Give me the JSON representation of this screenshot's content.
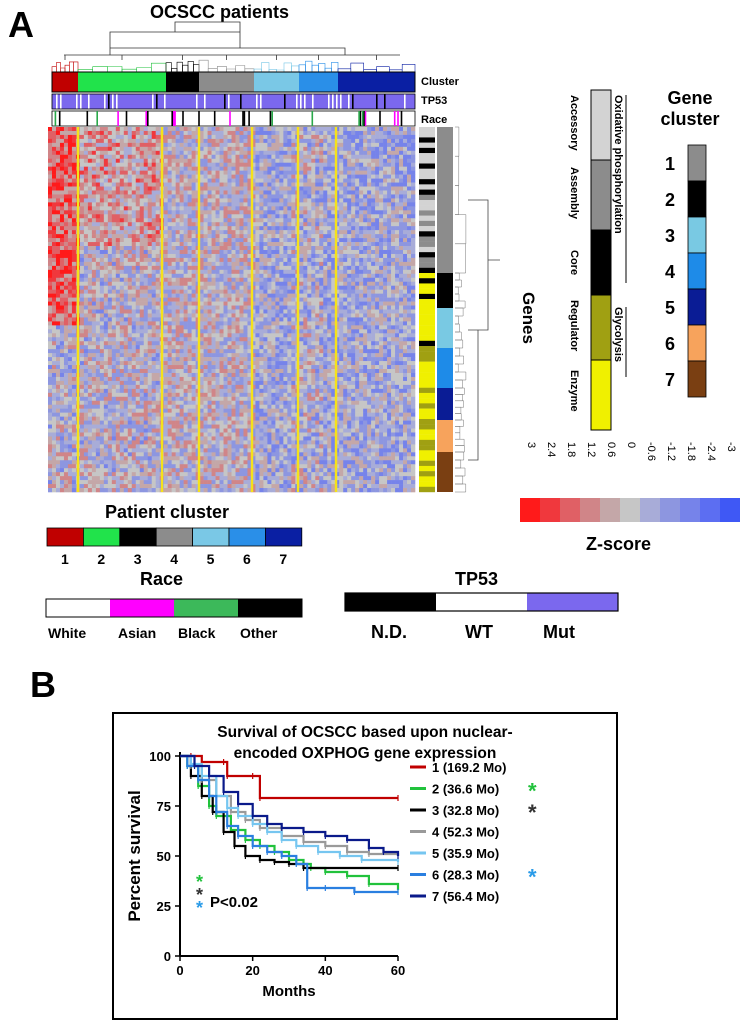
{
  "panel_a": {
    "letter": "A",
    "title": "OCSCC patients",
    "row_labels": {
      "cluster": "Cluster",
      "tp53": "TP53",
      "race": "Race"
    },
    "genes_label": "Genes",
    "pathways": {
      "oxphos": "Oxidative phosphorylation",
      "glycolysis": "Glycolysis",
      "subgroups": [
        "Accessory",
        "Assembly",
        "Core",
        "Regulator",
        "Enzyme"
      ]
    },
    "gene_cluster": {
      "title_line1": "Gene",
      "title_line2": "cluster",
      "numbers": [
        "1",
        "2",
        "3",
        "4",
        "5",
        "6",
        "7"
      ],
      "colors": [
        "#8c8c8c",
        "#000000",
        "#79c9e3",
        "#1e8be8",
        "#0a1c95",
        "#f7a35c",
        "#7a3f12"
      ]
    },
    "zscore": {
      "title": "Z-score",
      "ticks": [
        "3",
        "2.4",
        "1.8",
        "1.2",
        "0.6",
        "0",
        "-0.6",
        "-1.2",
        "-1.8",
        "-2.4",
        "-3"
      ],
      "colors": [
        "#ff1a1a",
        "#f0383d",
        "#e06065",
        "#d08588",
        "#c4a7a8",
        "#c6c6c6",
        "#a8acd8",
        "#8d96e0",
        "#7683ea",
        "#5c6ef2",
        "#3f58f5"
      ]
    },
    "patient_cluster": {
      "title": "Patient cluster",
      "numbers": [
        "1",
        "2",
        "3",
        "4",
        "5",
        "6",
        "7"
      ],
      "colors": [
        "#c00000",
        "#21e34b",
        "#000000",
        "#8c8c8c",
        "#7ac8e6",
        "#2a8fe8",
        "#0a1fa3"
      ]
    },
    "race": {
      "title": "Race",
      "labels": [
        "White",
        "Asian",
        "Black",
        "Other"
      ],
      "colors": [
        "#ffffff",
        "#ff00ff",
        "#3cb95a",
        "#000000"
      ]
    },
    "tp53": {
      "title": "TP53",
      "labels": [
        "N.D.",
        "WT",
        "Mut"
      ],
      "colors": [
        "#000000",
        "#ffffff",
        "#7b68ee"
      ]
    }
  },
  "panel_b": {
    "letter": "B",
    "title_line1": "Survival of OCSCC based upon nuclear-",
    "title_line2": "encoded OXPHOG gene expression",
    "pvalue": "P<0.02",
    "star": "*"
  },
  "chart_data": {
    "type": "line",
    "subtype": "kaplan-meier",
    "xlabel": "Months",
    "ylabel": "Percent survival",
    "xlim": [
      0,
      60
    ],
    "ylim": [
      0,
      100
    ],
    "xticks": [
      0,
      20,
      40,
      60
    ],
    "yticks": [
      0,
      25,
      50,
      75,
      100
    ],
    "series": [
      {
        "name": "1 (169.2 Mo)",
        "color": "#c00000",
        "star": false,
        "points": [
          [
            0,
            100
          ],
          [
            3,
            100
          ],
          [
            6,
            97
          ],
          [
            12,
            97
          ],
          [
            13,
            90
          ],
          [
            20,
            90
          ],
          [
            22,
            79
          ],
          [
            60,
            79
          ]
        ]
      },
      {
        "name": "2 (36.6 Mo)",
        "color": "#21c23c",
        "star": true,
        "star_color": "#21c23c",
        "points": [
          [
            0,
            100
          ],
          [
            2,
            95
          ],
          [
            5,
            85
          ],
          [
            8,
            75
          ],
          [
            10,
            70
          ],
          [
            14,
            63
          ],
          [
            18,
            58
          ],
          [
            22,
            55
          ],
          [
            26,
            52
          ],
          [
            30,
            48
          ],
          [
            34,
            46
          ],
          [
            36,
            44
          ],
          [
            40,
            42
          ],
          [
            46,
            40
          ],
          [
            52,
            36
          ],
          [
            60,
            33
          ]
        ]
      },
      {
        "name": "3 (32.8 Mo)",
        "color": "#000000",
        "star": true,
        "star_color": "#333333",
        "points": [
          [
            0,
            100
          ],
          [
            3,
            90
          ],
          [
            6,
            80
          ],
          [
            9,
            72
          ],
          [
            12,
            62
          ],
          [
            15,
            55
          ],
          [
            18,
            50
          ],
          [
            22,
            48
          ],
          [
            26,
            47
          ],
          [
            30,
            46
          ],
          [
            34,
            44
          ],
          [
            60,
            44
          ]
        ]
      },
      {
        "name": "4 (52.3 Mo)",
        "color": "#9a9a9a",
        "star": false,
        "points": [
          [
            0,
            100
          ],
          [
            3,
            95
          ],
          [
            6,
            88
          ],
          [
            10,
            80
          ],
          [
            14,
            72
          ],
          [
            18,
            68
          ],
          [
            22,
            64
          ],
          [
            28,
            60
          ],
          [
            34,
            57
          ],
          [
            40,
            55
          ],
          [
            46,
            52
          ],
          [
            52,
            51
          ],
          [
            60,
            50
          ]
        ]
      },
      {
        "name": "5 (35.9 Mo)",
        "color": "#76c6f0",
        "star": false,
        "points": [
          [
            0,
            100
          ],
          [
            3,
            96
          ],
          [
            6,
            90
          ],
          [
            10,
            80
          ],
          [
            13,
            74
          ],
          [
            16,
            70
          ],
          [
            20,
            66
          ],
          [
            24,
            62
          ],
          [
            28,
            58
          ],
          [
            32,
            55
          ],
          [
            38,
            52
          ],
          [
            44,
            50
          ],
          [
            50,
            48
          ],
          [
            60,
            47
          ]
        ]
      },
      {
        "name": "6 (28.3 Mo)",
        "color": "#2a7fe0",
        "star": true,
        "star_color": "#2a9be8",
        "points": [
          [
            0,
            100
          ],
          [
            2,
            95
          ],
          [
            5,
            88
          ],
          [
            8,
            80
          ],
          [
            10,
            72
          ],
          [
            13,
            65
          ],
          [
            16,
            60
          ],
          [
            20,
            55
          ],
          [
            24,
            52
          ],
          [
            28,
            50
          ],
          [
            32,
            46
          ],
          [
            35,
            34
          ],
          [
            40,
            34
          ],
          [
            48,
            32
          ],
          [
            60,
            32
          ]
        ]
      },
      {
        "name": "7 (56.4 Mo)",
        "color": "#0a1a8a",
        "star": false,
        "points": [
          [
            0,
            100
          ],
          [
            4,
            95
          ],
          [
            8,
            90
          ],
          [
            12,
            82
          ],
          [
            16,
            76
          ],
          [
            20,
            70
          ],
          [
            24,
            66
          ],
          [
            28,
            64
          ],
          [
            34,
            62
          ],
          [
            40,
            60
          ],
          [
            46,
            58
          ],
          [
            52,
            54
          ],
          [
            56,
            52
          ],
          [
            60,
            50
          ]
        ]
      }
    ]
  }
}
